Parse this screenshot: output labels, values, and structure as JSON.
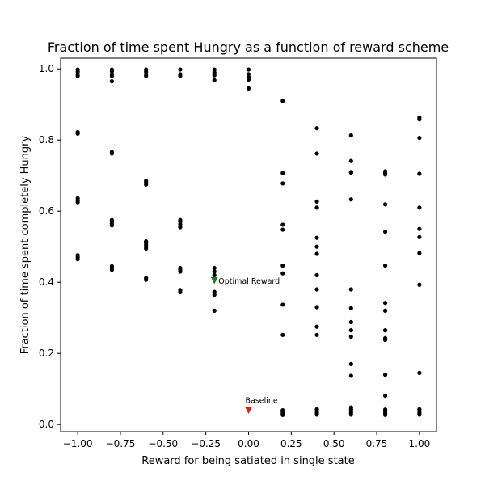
{
  "chart_data": {
    "type": "scatter",
    "title": "Fraction of time spent Hungry as a function of reward scheme",
    "xlabel": "Reward for being satiated in single state",
    "ylabel": "Fraction of time spent completely Hungry",
    "xlim": [
      -1.1,
      1.1
    ],
    "ylim": [
      -0.02,
      1.03
    ],
    "grid": false,
    "xticks": [
      -1.0,
      -0.75,
      -0.5,
      -0.25,
      0.0,
      0.25,
      0.5,
      0.75,
      1.0
    ],
    "xtick_labels": [
      "−1.00",
      "−0.75",
      "−0.50",
      "−0.25",
      "0.00",
      "0.25",
      "0.50",
      "0.75",
      "1.00"
    ],
    "yticks": [
      0.0,
      0.2,
      0.4,
      0.6,
      0.8,
      1.0
    ],
    "ytick_labels": [
      "0.0",
      "0.2",
      "0.4",
      "0.6",
      "0.8",
      "1.0"
    ],
    "series": [
      {
        "marker": "dot",
        "color": "#000000",
        "points": [
          {
            "x": -1.0,
            "ys": [
              0.998,
              0.992,
              0.985,
              0.98,
              0.822,
              0.818,
              0.636,
              0.63,
              0.625,
              0.476,
              0.47,
              0.465
            ]
          },
          {
            "x": -0.8,
            "ys": [
              0.998,
              0.993,
              0.985,
              0.98,
              0.965,
              0.766,
              0.762,
              0.575,
              0.57,
              0.565,
              0.56,
              0.445,
              0.44,
              0.435
            ]
          },
          {
            "x": -0.6,
            "ys": [
              0.998,
              0.992,
              0.985,
              0.98,
              0.685,
              0.68,
              0.675,
              0.515,
              0.51,
              0.505,
              0.5,
              0.495,
              0.412,
              0.407
            ]
          },
          {
            "x": -0.4,
            "ys": [
              0.998,
              0.985,
              0.98,
              0.575,
              0.57,
              0.563,
              0.555,
              0.44,
              0.435,
              0.43,
              0.378,
              0.372
            ]
          },
          {
            "x": -0.2,
            "ys": [
              0.998,
              0.99,
              0.982,
              0.968,
              0.44,
              0.43,
              0.42,
              0.408,
              0.373,
              0.365,
              0.32
            ]
          },
          {
            "x": 0.0,
            "ys": [
              0.998,
              0.985,
              0.977,
              0.97,
              0.945
            ]
          },
          {
            "x": 0.2,
            "ys": [
              0.91,
              0.707,
              0.678,
              0.562,
              0.548,
              0.447,
              0.425,
              0.337,
              0.252,
              0.04,
              0.035,
              0.03,
              0.027
            ]
          },
          {
            "x": 0.4,
            "ys": [
              0.833,
              0.762,
              0.627,
              0.61,
              0.525,
              0.5,
              0.48,
              0.42,
              0.38,
              0.33,
              0.275,
              0.252,
              0.043,
              0.038,
              0.033,
              0.028
            ]
          },
          {
            "x": 0.6,
            "ys": [
              0.813,
              0.741,
              0.71,
              0.708,
              0.633,
              0.38,
              0.327,
              0.288,
              0.265,
              0.247,
              0.17,
              0.137,
              0.048,
              0.043,
              0.038,
              0.033,
              0.028
            ]
          },
          {
            "x": 0.8,
            "ys": [
              0.712,
              0.707,
              0.703,
              0.619,
              0.542,
              0.447,
              0.342,
              0.32,
              0.265,
              0.243,
              0.238,
              0.14,
              0.081,
              0.042,
              0.037,
              0.032,
              0.027
            ]
          },
          {
            "x": 1.0,
            "ys": [
              0.863,
              0.858,
              0.806,
              0.705,
              0.61,
              0.55,
              0.527,
              0.482,
              0.393,
              0.145,
              0.043,
              0.038,
              0.033,
              0.028
            ]
          }
        ]
      }
    ],
    "annotations": [
      {
        "label": "Optimal Reward",
        "x": -0.2,
        "y": 0.405,
        "marker": "triangle-down",
        "color": "#1f7a1f"
      },
      {
        "label": "Baseline",
        "x": 0.0,
        "y": 0.04,
        "marker": "triangle-down",
        "color": "#e0201a"
      }
    ]
  }
}
